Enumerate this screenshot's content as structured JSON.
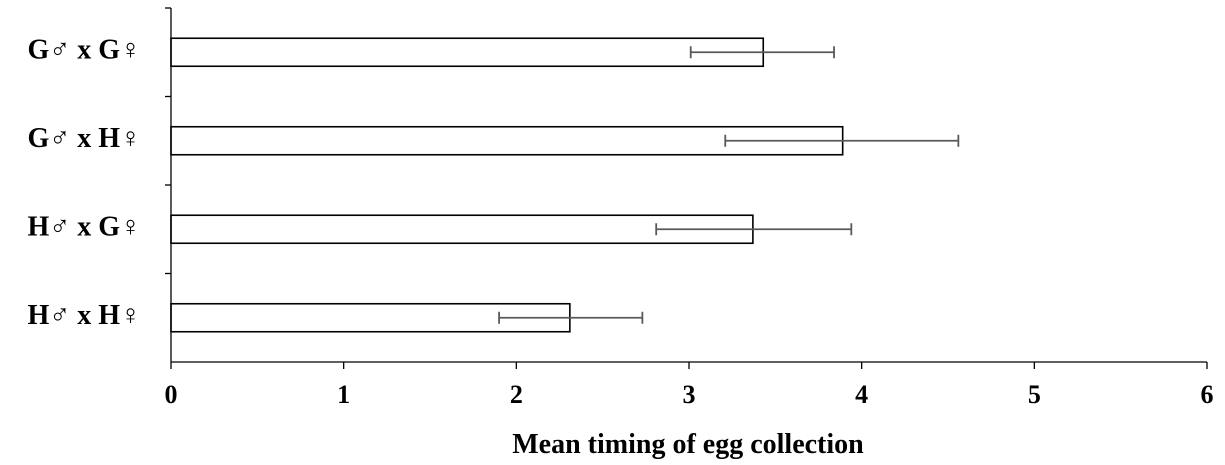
{
  "chart_data": {
    "type": "bar",
    "orientation": "horizontal",
    "categories": [
      "G♂ x G♀",
      "G♂ x H♀",
      "H♂ x G♀",
      "H♂ x H♀"
    ],
    "values": [
      3.43,
      3.89,
      3.37,
      2.31
    ],
    "errors": [
      {
        "low": 3.01,
        "high": 3.84
      },
      {
        "low": 3.21,
        "high": 4.56
      },
      {
        "low": 2.81,
        "high": 3.94
      },
      {
        "low": 1.9,
        "high": 2.73
      }
    ],
    "title": "",
    "xlabel": "Mean timing of egg collection",
    "ylabel": "",
    "xlim": [
      0,
      6
    ],
    "xticks": [
      "0",
      "1",
      "2",
      "3",
      "4",
      "5",
      "6"
    ],
    "grid": false,
    "legend": "none",
    "colors": {
      "bar_fill": "#ffffff",
      "bar_stroke": "#000000",
      "error_bar": "#595959",
      "axis": "#000000"
    }
  }
}
